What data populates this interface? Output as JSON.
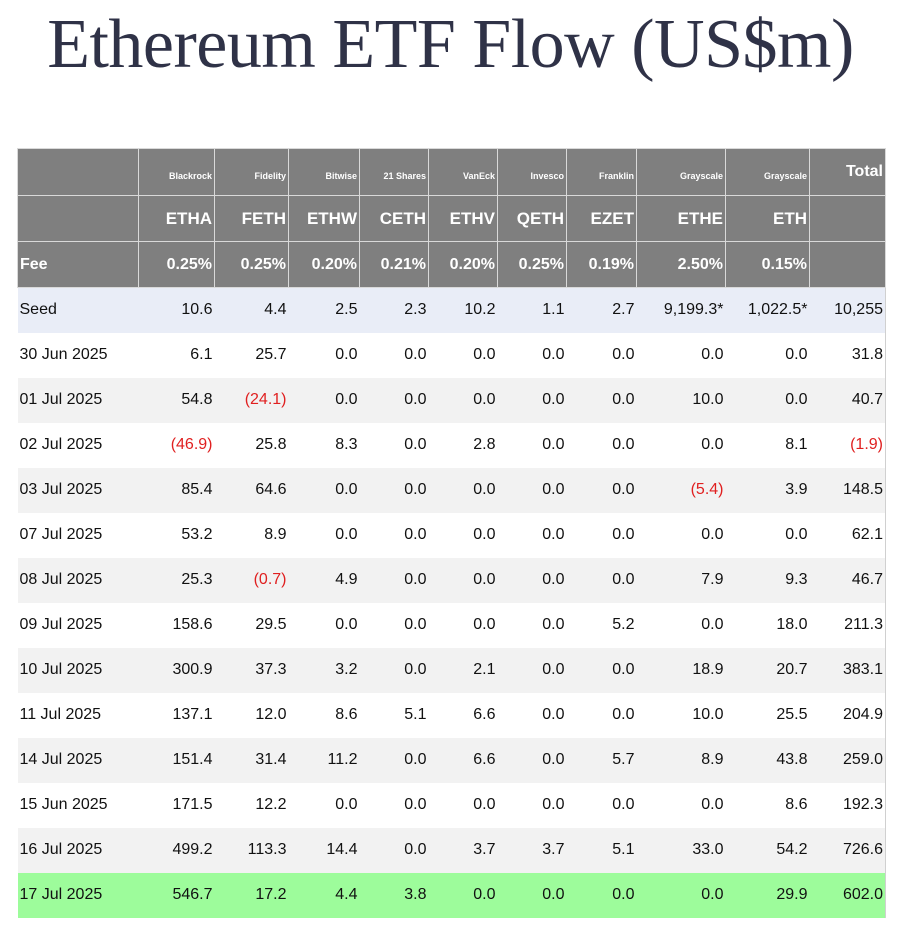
{
  "title": "Ethereum ETF Flow (US$m)",
  "colors": {
    "header_bg": "#7f7f7f",
    "seed_bg": "#e9edf7",
    "alt_row_bg": "#f2f2f2",
    "latest_row_bg": "#9dfc9b",
    "negative": "#e02020"
  },
  "header": {
    "issuers": [
      "Blackrock",
      "Fidelity",
      "Bitwise",
      "21 Shares",
      "VanEck",
      "Invesco",
      "Franklin",
      "Grayscale",
      "Grayscale"
    ],
    "total_label": "Total",
    "tickers": [
      "ETHA",
      "FETH",
      "ETHW",
      "CETH",
      "ETHV",
      "QETH",
      "EZET",
      "ETHE",
      "ETH"
    ],
    "fee_label": "Fee",
    "fees": [
      "0.25%",
      "0.25%",
      "0.20%",
      "0.21%",
      "0.20%",
      "0.25%",
      "0.19%",
      "2.50%",
      "0.15%"
    ]
  },
  "rows": [
    {
      "label": "Seed",
      "values": [
        "10.6",
        "4.4",
        "2.5",
        "2.3",
        "10.2",
        "1.1",
        "2.7",
        "9,199.3*",
        "1,022.5*"
      ],
      "total": "10,255"
    },
    {
      "label": "30 Jun 2025",
      "values": [
        "6.1",
        "25.7",
        "0.0",
        "0.0",
        "0.0",
        "0.0",
        "0.0",
        "0.0",
        "0.0"
      ],
      "total": "31.8"
    },
    {
      "label": "01 Jul 2025",
      "values": [
        "54.8",
        "(24.1)",
        "0.0",
        "0.0",
        "0.0",
        "0.0",
        "0.0",
        "10.0",
        "0.0"
      ],
      "total": "40.7"
    },
    {
      "label": "02 Jul 2025",
      "values": [
        "(46.9)",
        "25.8",
        "8.3",
        "0.0",
        "2.8",
        "0.0",
        "0.0",
        "0.0",
        "8.1"
      ],
      "total": "(1.9)"
    },
    {
      "label": "03 Jul 2025",
      "values": [
        "85.4",
        "64.6",
        "0.0",
        "0.0",
        "0.0",
        "0.0",
        "0.0",
        "(5.4)",
        "3.9"
      ],
      "total": "148.5"
    },
    {
      "label": "07 Jul 2025",
      "values": [
        "53.2",
        "8.9",
        "0.0",
        "0.0",
        "0.0",
        "0.0",
        "0.0",
        "0.0",
        "0.0"
      ],
      "total": "62.1"
    },
    {
      "label": "08 Jul 2025",
      "values": [
        "25.3",
        "(0.7)",
        "4.9",
        "0.0",
        "0.0",
        "0.0",
        "0.0",
        "7.9",
        "9.3"
      ],
      "total": "46.7"
    },
    {
      "label": "09 Jul 2025",
      "values": [
        "158.6",
        "29.5",
        "0.0",
        "0.0",
        "0.0",
        "0.0",
        "5.2",
        "0.0",
        "18.0"
      ],
      "total": "211.3"
    },
    {
      "label": "10 Jul 2025",
      "values": [
        "300.9",
        "37.3",
        "3.2",
        "0.0",
        "2.1",
        "0.0",
        "0.0",
        "18.9",
        "20.7"
      ],
      "total": "383.1"
    },
    {
      "label": "11 Jul 2025",
      "values": [
        "137.1",
        "12.0",
        "8.6",
        "5.1",
        "6.6",
        "0.0",
        "0.0",
        "10.0",
        "25.5"
      ],
      "total": "204.9"
    },
    {
      "label": "14 Jul 2025",
      "values": [
        "151.4",
        "31.4",
        "11.2",
        "0.0",
        "6.6",
        "0.0",
        "5.7",
        "8.9",
        "43.8"
      ],
      "total": "259.0"
    },
    {
      "label": "15 Jun 2025",
      "values": [
        "171.5",
        "12.2",
        "0.0",
        "0.0",
        "0.0",
        "0.0",
        "0.0",
        "0.0",
        "8.6"
      ],
      "total": "192.3"
    },
    {
      "label": "16 Jul 2025",
      "values": [
        "499.2",
        "113.3",
        "14.4",
        "0.0",
        "3.7",
        "3.7",
        "5.1",
        "33.0",
        "54.2"
      ],
      "total": "726.6"
    },
    {
      "label": "17 Jul 2025",
      "values": [
        "546.7",
        "17.2",
        "4.4",
        "3.8",
        "0.0",
        "0.0",
        "0.0",
        "0.0",
        "29.9"
      ],
      "total": "602.0"
    }
  ]
}
